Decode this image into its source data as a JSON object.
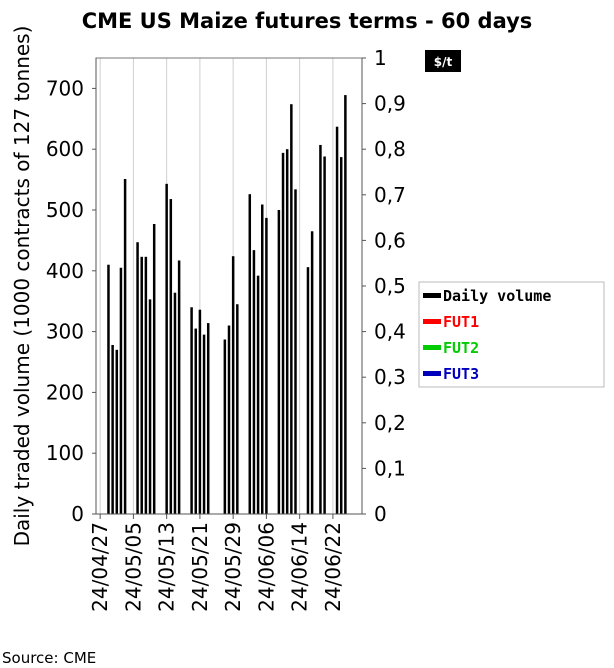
{
  "chart_data": {
    "type": "bar",
    "title": "CME US Maize futures terms - 60 days",
    "ylabel": "Daily traded volume (1000 contracts of 127 tonnes)",
    "ylim": [
      0,
      750
    ],
    "y_ticks": [
      "0",
      "100",
      "200",
      "300",
      "400",
      "500",
      "600",
      "700"
    ],
    "y2_ticks": [
      "0",
      "0,1",
      "0,2",
      "0,3",
      "0,4",
      "0,5",
      "0,6",
      "0,7",
      "0,8",
      "0,9",
      "1"
    ],
    "y2lim": [
      0,
      1
    ],
    "y2_unit": "$/t",
    "x_ticks": [
      "24/04/27",
      "24/05/05",
      "24/05/13",
      "24/05/21",
      "24/05/29",
      "24/06/06",
      "24/06/14",
      "24/06/22"
    ],
    "x_start": "2024-04-26",
    "x_end": "2024-06-29",
    "grid": "vertical",
    "legend_position": "right",
    "series": [
      {
        "name": "Daily volume",
        "color": "#000000",
        "points": [
          {
            "date": "2024-04-29",
            "value": 410
          },
          {
            "date": "2024-04-30",
            "value": 278
          },
          {
            "date": "2024-05-01",
            "value": 270
          },
          {
            "date": "2024-05-02",
            "value": 405
          },
          {
            "date": "2024-05-03",
            "value": 551
          },
          {
            "date": "2024-05-06",
            "value": 447
          },
          {
            "date": "2024-05-07",
            "value": 423
          },
          {
            "date": "2024-05-08",
            "value": 423
          },
          {
            "date": "2024-05-09",
            "value": 353
          },
          {
            "date": "2024-05-10",
            "value": 477
          },
          {
            "date": "2024-05-13",
            "value": 543
          },
          {
            "date": "2024-05-14",
            "value": 518
          },
          {
            "date": "2024-05-15",
            "value": 364
          },
          {
            "date": "2024-05-16",
            "value": 417
          },
          {
            "date": "2024-05-19",
            "value": 340
          },
          {
            "date": "2024-05-20",
            "value": 305
          },
          {
            "date": "2024-05-21",
            "value": 336
          },
          {
            "date": "2024-05-22",
            "value": 295
          },
          {
            "date": "2024-05-23",
            "value": 314
          },
          {
            "date": "2024-05-27",
            "value": 287
          },
          {
            "date": "2024-05-28",
            "value": 310
          },
          {
            "date": "2024-05-29",
            "value": 424
          },
          {
            "date": "2024-05-30",
            "value": 345
          },
          {
            "date": "2024-06-02",
            "value": 526
          },
          {
            "date": "2024-06-03",
            "value": 434
          },
          {
            "date": "2024-06-04",
            "value": 392
          },
          {
            "date": "2024-06-05",
            "value": 509
          },
          {
            "date": "2024-06-06",
            "value": 487
          },
          {
            "date": "2024-06-09",
            "value": 500
          },
          {
            "date": "2024-06-10",
            "value": 594
          },
          {
            "date": "2024-06-11",
            "value": 600
          },
          {
            "date": "2024-06-12",
            "value": 674
          },
          {
            "date": "2024-06-13",
            "value": 534
          },
          {
            "date": "2024-06-16",
            "value": 406
          },
          {
            "date": "2024-06-17",
            "value": 465
          },
          {
            "date": "2024-06-19",
            "value": 607
          },
          {
            "date": "2024-06-20",
            "value": 588
          },
          {
            "date": "2024-06-23",
            "value": 637
          },
          {
            "date": "2024-06-24",
            "value": 587
          },
          {
            "date": "2024-06-25",
            "value": 689
          }
        ]
      },
      {
        "name": "FUT1",
        "color": "#ff0000",
        "points": []
      },
      {
        "name": "FUT2",
        "color": "#00cc00",
        "points": []
      },
      {
        "name": "FUT3",
        "color": "#0000bb",
        "points": []
      }
    ]
  },
  "source": "Source: CME"
}
